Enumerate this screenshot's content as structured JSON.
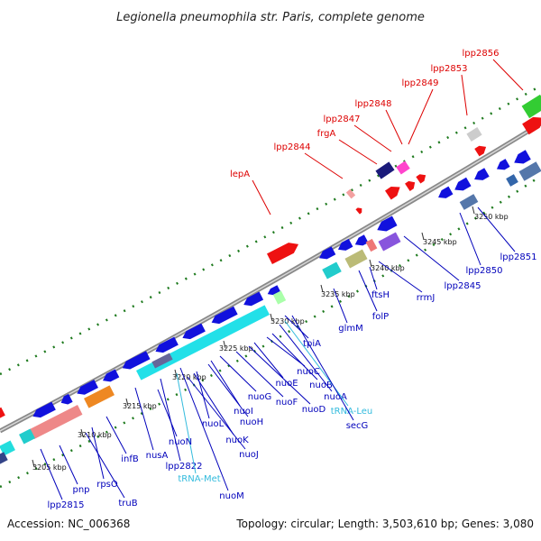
{
  "title": "Legionella pneumophila str. Paris, complete genome",
  "accession": "Accession: NC_006368",
  "summary": "Topology: circular; Length: 3,503,610 bp; Genes: 3,080",
  "colors": {
    "backbone": "#8a8a8a",
    "dots": "#1e7a1e",
    "top_label": "#dd0000",
    "bottom_label": "#0000bb",
    "rna_label": "#33bbdd",
    "forward_gene": "#ee1111",
    "reverse_gene": "#1111dd",
    "rna_feature": "#22e0e8"
  },
  "tick_labels": [
    "3205 kbp",
    "3210 kbp",
    "3215 kbp",
    "3220 kbp",
    "3225 kbp",
    "3230 kbp",
    "3235 kbp",
    "3240 kbp",
    "3245 kbp",
    "3250 kbp"
  ],
  "top_labels": [
    "lepA",
    "lpp2844",
    "frgA",
    "lpp2847",
    "lpp2848",
    "lpp2849",
    "lpp2853",
    "lpp2856"
  ],
  "bottom_labels": [
    "lpp2815",
    "pnp",
    "truB",
    "rpsO",
    "infB",
    "nusA",
    "lpp2822",
    "tRNA-Met",
    "nuoM",
    "nuoN",
    "nuoJ",
    "nuoK",
    "nuoL",
    "nuoH",
    "nuoI",
    "nuoG",
    "nuoF",
    "nuoD",
    "nuoE",
    "nuoC",
    "nuoB",
    "nuoA",
    "tRNA-Leu",
    "secG",
    "tpiA",
    "glmM",
    "folP",
    "ftsH",
    "rrmJ",
    "lpp2845",
    "lpp2850",
    "lpp2851"
  ]
}
